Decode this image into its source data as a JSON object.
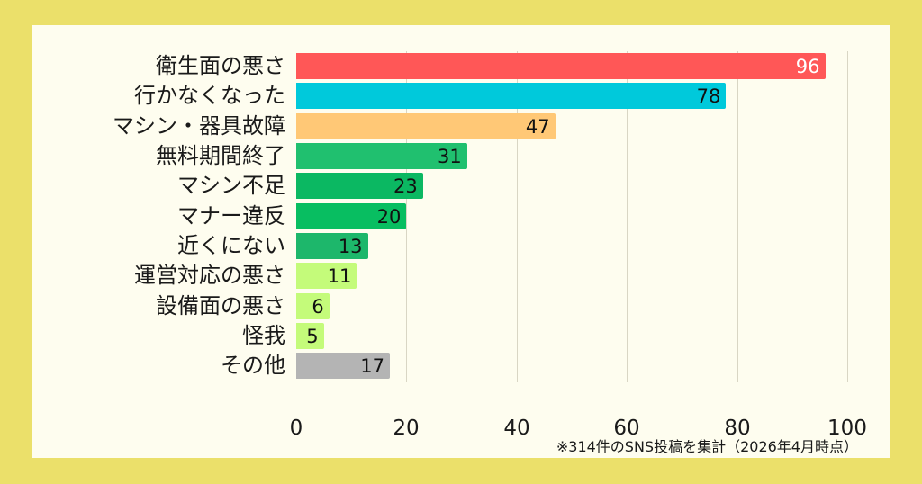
{
  "chart_data": {
    "type": "bar",
    "orientation": "horizontal",
    "title": "",
    "xlabel": "",
    "ylabel": "",
    "xlim": [
      0,
      100
    ],
    "x_ticks": [
      0,
      20,
      40,
      60,
      80,
      100
    ],
    "grid": true,
    "legend": null,
    "categories": [
      "衛生面の悪さ",
      "行かなくなった",
      "マシン・器具故障",
      "無料期間終了",
      "マシン不足",
      "マナー違反",
      "近くにない",
      "運営対応の悪さ",
      "設備面の悪さ",
      "怪我",
      "その他"
    ],
    "values": [
      96,
      78,
      47,
      31,
      23,
      20,
      13,
      11,
      6,
      5,
      17
    ],
    "colors": [
      "#ff5757",
      "#00c9db",
      "#ffc876",
      "#20c06f",
      "#0bb862",
      "#08be61",
      "#1db76b",
      "#c4fb7a",
      "#c4fb7a",
      "#c4fb7a",
      "#b4b4b4"
    ],
    "value_label_colors": [
      "#ffffff",
      "#111111",
      "#111111",
      "#111111",
      "#111111",
      "#111111",
      "#111111",
      "#111111",
      "#111111",
      "#111111",
      "#111111"
    ],
    "annotations": [
      "※314件のSNS投稿を集計（2026年4月時点）"
    ]
  },
  "bars": [
    {
      "label": "衛生面の悪さ",
      "value": "96"
    },
    {
      "label": "行かなくなった",
      "value": "78"
    },
    {
      "label": "マシン・器具故障",
      "value": "47"
    },
    {
      "label": "無料期間終了",
      "value": "31"
    },
    {
      "label": "マシン不足",
      "value": "23"
    },
    {
      "label": "マナー違反",
      "value": "20"
    },
    {
      "label": "近くにない",
      "value": "13"
    },
    {
      "label": "運営対応の悪さ",
      "value": "11"
    },
    {
      "label": "設備面の悪さ",
      "value": "6"
    },
    {
      "label": "怪我",
      "value": "5"
    },
    {
      "label": "その他",
      "value": "17"
    }
  ],
  "axis": {
    "ticks": [
      "0",
      "20",
      "40",
      "60",
      "80",
      "100"
    ]
  },
  "footnote": "※314件のSNS投稿を集計（2026年4月時点）",
  "colors": {
    "background": "#ebe06a",
    "panel": "#fefdef",
    "grid": "#d9d6c4"
  }
}
